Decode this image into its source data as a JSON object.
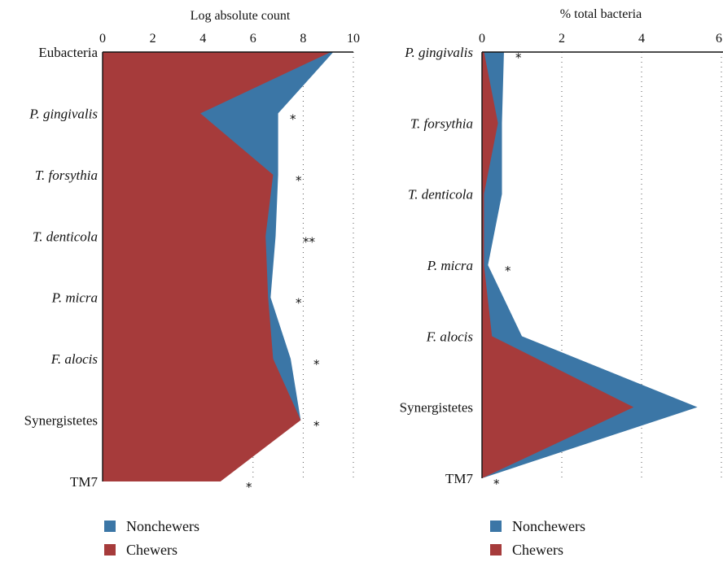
{
  "colors": {
    "nonchewers": "#3b76a6",
    "chewers": "#a63b3b",
    "axis": "#111111",
    "grid": "#555555"
  },
  "chart_data": [
    {
      "type": "area",
      "title": "Log absolute count",
      "xlabel": "",
      "ylabel": "",
      "xlim": [
        0,
        10
      ],
      "xticks": [
        "0",
        "2",
        "4",
        "6",
        "8",
        "10"
      ],
      "grid": "vertical dotted",
      "categories": [
        "Eubacteria",
        "P. gingivalis",
        "T. forsythia",
        "T. denticola",
        "P. micra",
        "F. alocis",
        "Synergistetes",
        "TM7"
      ],
      "italic": [
        false,
        true,
        true,
        true,
        true,
        true,
        false,
        false
      ],
      "series": [
        {
          "name": "Nonchewers",
          "values": [
            9.2,
            7.0,
            7.0,
            6.9,
            6.7,
            7.5,
            7.9,
            4.3
          ]
        },
        {
          "name": "Chewers",
          "values": [
            9.1,
            3.9,
            6.8,
            6.5,
            6.6,
            6.8,
            7.9,
            4.7
          ]
        }
      ],
      "significance": [
        "",
        "*",
        "*",
        "**",
        "*",
        "*",
        "*",
        "*"
      ]
    },
    {
      "type": "area",
      "title": "% total bacteria",
      "xlabel": "",
      "ylabel": "",
      "xlim": [
        0,
        6
      ],
      "xticks": [
        "0",
        "2",
        "4",
        "6"
      ],
      "grid": "vertical dotted",
      "categories": [
        "P. gingivalis",
        "T. forsythia",
        "T. denticola",
        "P. micra",
        "F. alocis",
        "Synergistetes",
        "TM7"
      ],
      "italic": [
        true,
        true,
        true,
        true,
        true,
        false,
        false
      ],
      "series": [
        {
          "name": "Nonchewers",
          "values": [
            0.55,
            0.5,
            0.5,
            0.15,
            1.0,
            5.4,
            0.0
          ]
        },
        {
          "name": "Chewers",
          "values": [
            0.05,
            0.4,
            0.05,
            0.05,
            0.25,
            3.8,
            0.0
          ]
        }
      ],
      "significance": [
        "*",
        "",
        "",
        "*",
        "",
        "",
        "*"
      ]
    }
  ],
  "legend": [
    {
      "label": "Nonchewers",
      "color": "#3b76a6"
    },
    {
      "label": "Chewers",
      "color": "#a63b3b"
    }
  ]
}
